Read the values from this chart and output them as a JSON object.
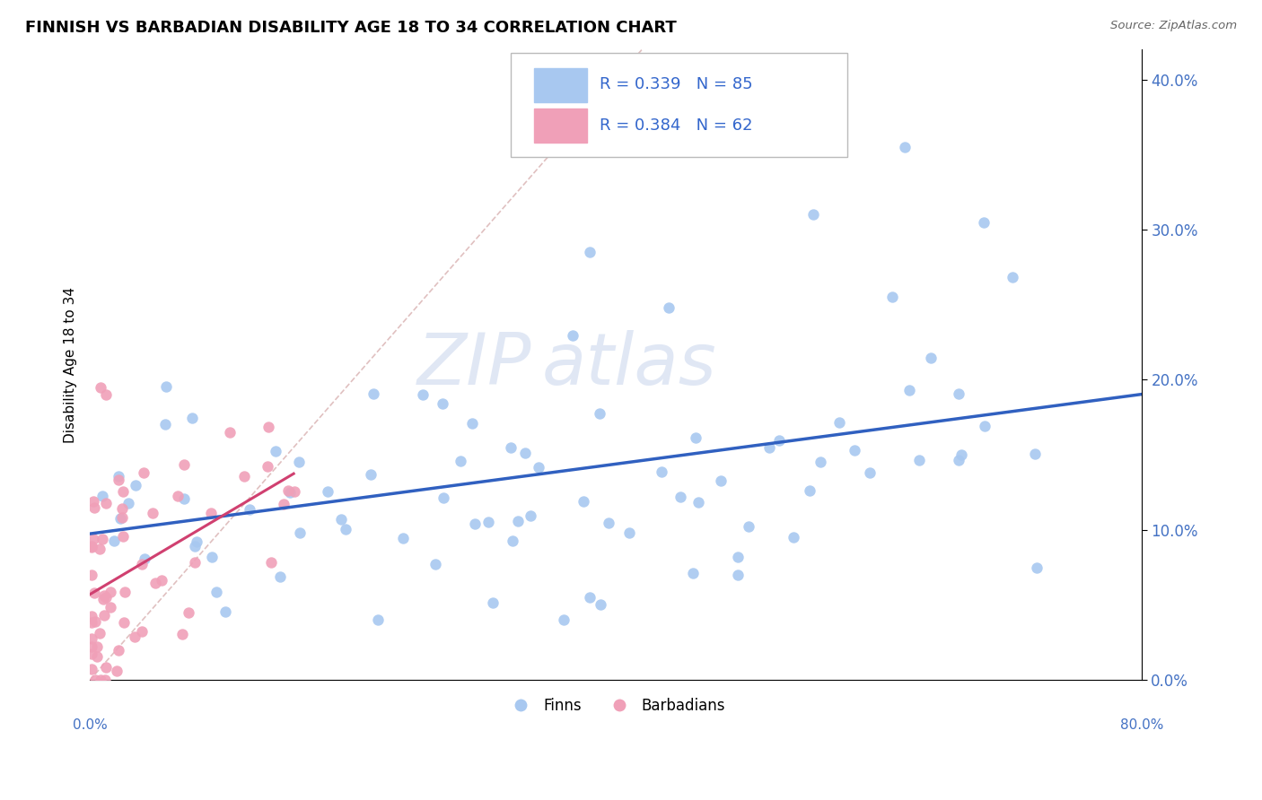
{
  "title": "FINNISH VS BARBADIAN DISABILITY AGE 18 TO 34 CORRELATION CHART",
  "source": "Source: ZipAtlas.com",
  "ylabel": "Disability Age 18 to 34",
  "watermark_zip": "ZIP",
  "watermark_atlas": "atlas",
  "finn_color": "#a8c8f0",
  "barb_color": "#f0a0b8",
  "finn_line_color": "#3060c0",
  "barb_line_color": "#d04070",
  "diagonal_color": "#e0c0c0",
  "legend_finn_R": "0.339",
  "legend_finn_N": "85",
  "legend_barb_R": "0.384",
  "legend_barb_N": "62",
  "xlim": [
    0,
    0.8
  ],
  "ylim": [
    0,
    0.42
  ],
  "ytick_interval": 0.1,
  "xtick_interval": 0.1
}
